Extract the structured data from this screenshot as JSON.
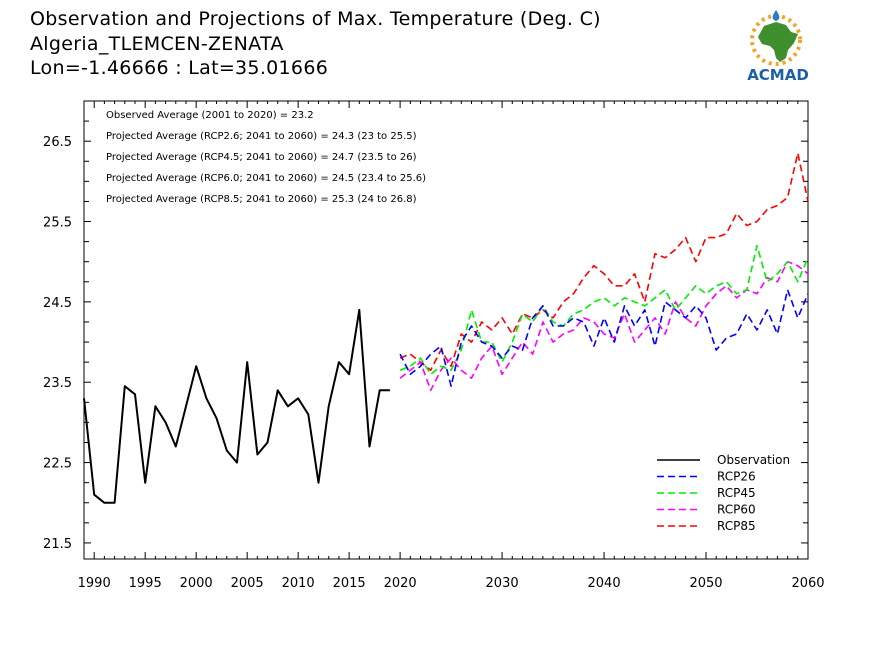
{
  "title": {
    "line1": "Observation and Projections of Max. Temperature (Deg. C)",
    "line2": "Algeria_TLEMCEN-ZENATA",
    "line3": "Lon=-1.46666 : Lat=35.01666"
  },
  "logo": {
    "text": "ACMAD",
    "icon": "africa-map-logo",
    "colors": {
      "africa": "#3f8f2e",
      "sun": "#f0a52a",
      "drop": "#2f7cc0",
      "text": "#1b5fa8"
    }
  },
  "stats": [
    "Observed Average (2001 to 2020) = 23.2",
    "Projected Average (RCP2.6; 2041 to 2060) = 24.3 (23 to 25.5)",
    "Projected Average (RCP4.5; 2041 to 2060) = 24.7 (23.5 to 26)",
    "Projected Average (RCP6.0; 2041 to 2060) = 24.5 (23.4 to 25.6)",
    "Projected Average (RCP8.5; 2041 to 2060) = 25.3 (24 to 26.8)"
  ],
  "chart_data": {
    "type": "line",
    "xlim": [
      1989,
      2060
    ],
    "ylim": [
      21.3,
      27.0
    ],
    "grid": false,
    "legend_position": "bottom-right",
    "y_ticks": [
      21.5,
      22.5,
      23.5,
      24.5,
      25.5,
      26.5
    ],
    "y_tick_labels": [
      "21.5",
      "22.5",
      "23.5",
      "24.5",
      "25.5",
      "26.5"
    ],
    "x_ticks": [
      1990,
      1995,
      2000,
      2005,
      2010,
      2015,
      2020,
      2030,
      2040,
      2050,
      2060
    ],
    "x_tick_labels": [
      "1990",
      "1995",
      "2000",
      "2005",
      "2010",
      "2015",
      "2020",
      "2030",
      "2040",
      "2050",
      "2060"
    ],
    "series": [
      {
        "name": "Observation",
        "color": "#000000",
        "dash": "solid",
        "x": [
          1989,
          1990,
          1991,
          1992,
          1993,
          1994,
          1995,
          1996,
          1997,
          1998,
          1999,
          2000,
          2001,
          2002,
          2003,
          2004,
          2005,
          2006,
          2007,
          2008,
          2009,
          2010,
          2011,
          2012,
          2013,
          2014,
          2015,
          2016,
          2017,
          2018,
          2019
        ],
        "y": [
          23.3,
          22.1,
          22.0,
          22.0,
          23.45,
          23.35,
          22.25,
          23.2,
          23.0,
          22.7,
          23.2,
          23.7,
          23.3,
          23.05,
          22.65,
          22.5,
          23.75,
          22.6,
          22.75,
          23.4,
          23.2,
          23.3,
          23.1,
          22.25,
          23.2,
          23.75,
          23.6,
          24.4,
          22.7,
          23.4,
          23.4
        ]
      },
      {
        "name": "RCP26",
        "color": "#0000ff",
        "dash": "dashed",
        "x": [
          2020,
          2021,
          2022,
          2023,
          2024,
          2025,
          2026,
          2027,
          2028,
          2029,
          2030,
          2031,
          2032,
          2033,
          2034,
          2035,
          2036,
          2037,
          2038,
          2039,
          2040,
          2041,
          2042,
          2043,
          2044,
          2045,
          2046,
          2047,
          2048,
          2049,
          2050,
          2051,
          2052,
          2053,
          2054,
          2055,
          2056,
          2057,
          2058,
          2059,
          2060
        ],
        "y": [
          23.85,
          23.6,
          23.7,
          23.85,
          23.95,
          23.45,
          24.0,
          24.2,
          24.0,
          23.95,
          23.8,
          23.95,
          23.9,
          24.3,
          24.45,
          24.2,
          24.2,
          24.3,
          24.25,
          23.95,
          24.3,
          24.0,
          24.45,
          24.2,
          24.4,
          23.95,
          24.5,
          24.4,
          24.3,
          24.45,
          24.3,
          23.9,
          24.05,
          24.1,
          24.35,
          24.15,
          24.4,
          24.1,
          24.65,
          24.3,
          24.6
        ]
      },
      {
        "name": "RCP45",
        "color": "#00ee00",
        "dash": "dashed",
        "x": [
          2020,
          2021,
          2022,
          2023,
          2024,
          2025,
          2026,
          2027,
          2028,
          2029,
          2030,
          2031,
          2032,
          2033,
          2034,
          2035,
          2036,
          2037,
          2038,
          2039,
          2040,
          2041,
          2042,
          2043,
          2044,
          2045,
          2046,
          2047,
          2048,
          2049,
          2050,
          2051,
          2052,
          2053,
          2054,
          2055,
          2056,
          2057,
          2058,
          2059,
          2060
        ],
        "y": [
          23.65,
          23.7,
          23.8,
          23.6,
          23.7,
          23.65,
          23.9,
          24.4,
          24.0,
          24.0,
          23.75,
          24.0,
          24.35,
          24.25,
          24.45,
          24.25,
          24.2,
          24.35,
          24.4,
          24.5,
          24.55,
          24.45,
          24.55,
          24.5,
          24.45,
          24.55,
          24.65,
          24.4,
          24.55,
          24.7,
          24.6,
          24.7,
          24.75,
          24.6,
          24.65,
          25.2,
          24.75,
          24.85,
          25.0,
          24.75,
          25.05
        ]
      },
      {
        "name": "RCP60",
        "color": "#ff00ff",
        "dash": "dashed",
        "x": [
          2020,
          2021,
          2022,
          2023,
          2024,
          2025,
          2026,
          2027,
          2028,
          2029,
          2030,
          2031,
          2032,
          2033,
          2034,
          2035,
          2036,
          2037,
          2038,
          2039,
          2040,
          2041,
          2042,
          2043,
          2044,
          2045,
          2046,
          2047,
          2048,
          2049,
          2050,
          2051,
          2052,
          2053,
          2054,
          2055,
          2056,
          2057,
          2058,
          2059,
          2060
        ],
        "y": [
          23.55,
          23.65,
          23.75,
          23.4,
          23.65,
          23.8,
          23.65,
          23.55,
          23.8,
          23.95,
          23.6,
          23.8,
          24.0,
          23.85,
          24.25,
          24.0,
          24.1,
          24.15,
          24.3,
          24.25,
          24.1,
          24.05,
          24.35,
          24.0,
          24.15,
          24.3,
          24.1,
          24.5,
          24.3,
          24.2,
          24.45,
          24.6,
          24.7,
          24.55,
          24.65,
          24.6,
          24.8,
          24.75,
          25.0,
          24.95,
          24.85
        ]
      },
      {
        "name": "RCP85",
        "color": "#ff0000",
        "dash": "dashed",
        "x": [
          2020,
          2021,
          2022,
          2023,
          2024,
          2025,
          2026,
          2027,
          2028,
          2029,
          2030,
          2031,
          2032,
          2033,
          2034,
          2035,
          2036,
          2037,
          2038,
          2039,
          2040,
          2041,
          2042,
          2043,
          2044,
          2045,
          2046,
          2047,
          2048,
          2049,
          2050,
          2051,
          2052,
          2053,
          2054,
          2055,
          2056,
          2057,
          2058,
          2059,
          2060
        ],
        "y": [
          23.8,
          23.85,
          23.75,
          23.65,
          23.9,
          23.7,
          24.1,
          24.0,
          24.25,
          24.15,
          24.3,
          24.1,
          24.35,
          24.3,
          24.4,
          24.3,
          24.5,
          24.6,
          24.8,
          24.95,
          24.85,
          24.7,
          24.7,
          24.85,
          24.5,
          25.1,
          25.05,
          25.15,
          25.3,
          25.0,
          25.3,
          25.3,
          25.35,
          25.6,
          25.45,
          25.5,
          25.65,
          25.7,
          25.8,
          26.35,
          25.75
        ]
      }
    ]
  }
}
